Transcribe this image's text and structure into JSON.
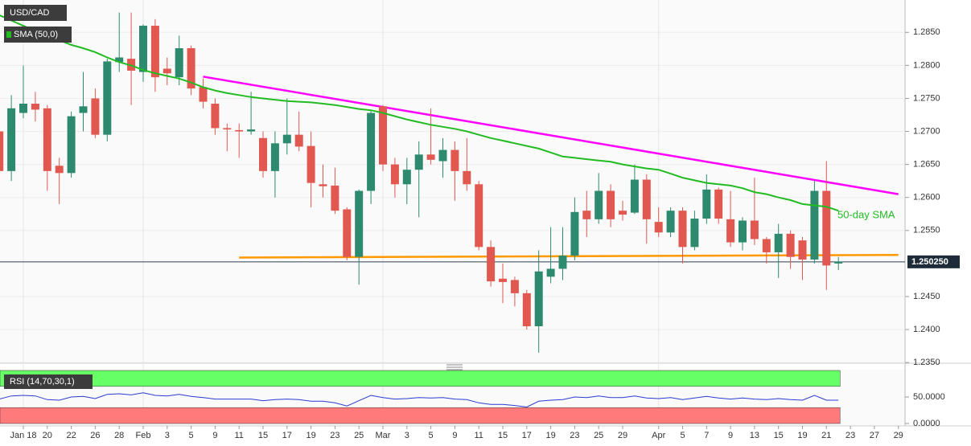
{
  "chart_data": [
    {
      "type": "candlestick",
      "title": "USD/CAD",
      "categories": [
        null,
        null,
        "Jan 18",
        null,
        "20",
        null,
        "22",
        null,
        "26",
        null,
        "28",
        null,
        "Feb",
        null,
        "3",
        null,
        "5",
        null,
        "9",
        null,
        "11",
        null,
        "15",
        null,
        "17",
        null,
        "19",
        null,
        "23",
        null,
        "25",
        null,
        "Mar",
        null,
        "3",
        null,
        "5",
        null,
        "9",
        null,
        "11",
        null,
        "15",
        null,
        "17",
        null,
        "19",
        null,
        "23",
        null,
        "25",
        null,
        "29",
        null,
        null,
        "Apr",
        null,
        "5",
        null,
        "7",
        null,
        "9",
        null,
        "13",
        null,
        "15",
        null,
        "19",
        null,
        "21",
        null,
        "23",
        null,
        "27",
        null,
        "29"
      ],
      "open": [
        1.27,
        1.264,
        1.2728,
        1.2742,
        1.2735,
        1.2648,
        1.2637,
        1.2728,
        1.275,
        1.2695,
        1.2805,
        1.281,
        1.279,
        1.286,
        1.2795,
        1.2782,
        1.2826,
        1.2767,
        1.2742,
        1.2705,
        1.2702,
        1.27,
        1.269,
        1.264,
        1.2682,
        1.2695,
        1.2678,
        1.262,
        1.2618,
        1.2582,
        1.251,
        1.261,
        1.2738,
        1.265,
        1.262,
        1.2642,
        1.2665,
        1.2655,
        1.2672,
        1.264,
        1.262,
        1.2525,
        1.2477,
        1.2475,
        1.2455,
        1.2405,
        1.248,
        1.2492,
        1.2512,
        1.258,
        1.2567,
        1.261,
        1.258,
        1.2577,
        1.2627,
        1.2563,
        1.2547,
        1.258,
        1.2525,
        1.2568,
        1.2612,
        1.2567,
        1.2532,
        1.2565,
        1.2537,
        1.2517,
        1.2545,
        1.2535,
        1.2506,
        1.261,
        1.25,
        null,
        null,
        null,
        null,
        null
      ],
      "high": [
        1.272,
        1.2755,
        1.28,
        1.276,
        1.274,
        1.266,
        1.273,
        1.279,
        1.2765,
        1.281,
        1.288,
        1.288,
        1.2862,
        1.287,
        1.2812,
        1.2845,
        1.283,
        1.278,
        1.275,
        1.2712,
        1.2712,
        1.276,
        1.27,
        1.27,
        1.275,
        1.273,
        1.27,
        1.265,
        1.2645,
        1.2585,
        1.2612,
        1.2732,
        1.274,
        1.266,
        1.266,
        1.2685,
        1.2735,
        1.269,
        1.2685,
        1.269,
        1.2625,
        1.2535,
        1.25,
        1.248,
        1.246,
        1.252,
        1.2555,
        1.2555,
        1.26,
        1.261,
        1.2637,
        1.262,
        1.2595,
        1.265,
        1.2635,
        1.2585,
        1.2585,
        1.2585,
        1.258,
        1.2635,
        1.2615,
        1.261,
        1.257,
        1.263,
        1.254,
        1.256,
        1.255,
        1.254,
        1.2625,
        1.2655,
        1.251,
        null,
        null,
        null,
        null,
        null
      ],
      "low": [
        1.263,
        1.2625,
        1.272,
        1.2715,
        1.261,
        1.259,
        1.263,
        1.27,
        1.269,
        1.2685,
        1.279,
        1.274,
        1.2775,
        1.276,
        1.277,
        1.277,
        1.2755,
        1.2735,
        1.2695,
        1.267,
        1.266,
        1.2695,
        1.263,
        1.26,
        1.2665,
        1.267,
        1.2585,
        1.26,
        1.2575,
        1.2505,
        1.2468,
        1.259,
        1.264,
        1.26,
        1.259,
        1.257,
        1.265,
        1.263,
        1.2595,
        1.261,
        1.252,
        1.2465,
        1.244,
        1.2435,
        1.24,
        1.2365,
        1.247,
        1.2475,
        1.2505,
        1.254,
        1.256,
        1.2555,
        1.2565,
        1.2575,
        1.253,
        1.254,
        1.254,
        1.25,
        1.252,
        1.256,
        1.256,
        1.2525,
        1.252,
        1.2528,
        1.25,
        1.2478,
        1.2492,
        1.2475,
        1.25,
        1.246,
        1.249,
        null,
        null,
        null,
        null,
        null
      ],
      "close": [
        1.264,
        1.2735,
        1.2742,
        1.2733,
        1.264,
        1.2637,
        1.2723,
        1.2738,
        1.2695,
        1.2806,
        1.2812,
        1.2792,
        1.286,
        1.2782,
        1.2788,
        1.2826,
        1.2765,
        1.2745,
        1.2705,
        1.2703,
        1.27,
        1.2703,
        1.264,
        1.2682,
        1.2695,
        1.2677,
        1.2622,
        1.2617,
        1.258,
        1.251,
        1.261,
        1.2728,
        1.265,
        1.262,
        1.2642,
        1.2665,
        1.2657,
        1.2672,
        1.264,
        1.262,
        1.2525,
        1.2473,
        1.2472,
        1.2455,
        1.2405,
        1.2488,
        1.2492,
        1.2512,
        1.2578,
        1.2567,
        1.261,
        1.2567,
        1.2574,
        1.2627,
        1.2567,
        1.2547,
        1.258,
        1.2525,
        1.2568,
        1.2612,
        1.2568,
        1.2532,
        1.2565,
        1.2537,
        1.2517,
        1.2545,
        1.251,
        1.2506,
        1.261,
        1.2497,
        1.2503,
        null,
        null,
        null,
        null,
        null
      ],
      "up_color": "#2d8a6e",
      "down_color": "#e0584f",
      "series": [
        {
          "name": "SMA (50,0)",
          "color": "#22bb22",
          "values": [
            1.2876,
            1.2868,
            1.286,
            1.2852,
            1.2845,
            1.2838,
            1.2831,
            1.2826,
            1.282,
            1.2812,
            1.2805,
            1.28,
            1.2793,
            1.2788,
            1.2784,
            1.278,
            1.2774,
            1.2767,
            1.2762,
            1.2758,
            1.2755,
            1.2752,
            1.275,
            1.2748,
            1.2746,
            1.2745,
            1.2744,
            1.2742,
            1.274,
            1.2737,
            1.2734,
            1.2732,
            1.2728,
            1.2723,
            1.2718,
            1.2714,
            1.271,
            1.2707,
            1.2704,
            1.27,
            1.2695,
            1.269,
            1.2686,
            1.2682,
            1.2678,
            1.2674,
            1.2668,
            1.2662,
            1.266,
            1.2658,
            1.2656,
            1.2654,
            1.265,
            1.2647,
            1.2644,
            1.2642,
            1.2636,
            1.263,
            1.2626,
            1.2622,
            1.262,
            1.2618,
            1.2614,
            1.2608,
            1.2605,
            1.26,
            1.2596,
            1.259,
            1.2588,
            1.2586,
            1.258,
            null,
            null,
            null,
            null,
            null
          ]
        }
      ],
      "annotation": "50-day SMA",
      "trendlines": [
        {
          "color": "#ff00ff",
          "x": [
            17,
            75
          ],
          "y": [
            1.2783,
            1.2605
          ]
        },
        {
          "color": "#ff9900",
          "x": [
            20,
            75
          ],
          "y": [
            1.2509,
            1.2513
          ]
        }
      ],
      "last_price": {
        "value": 1.25025,
        "label": "1.250250"
      },
      "ylim": [
        1.2349,
        1.2899
      ],
      "yticks": [
        {
          "value": 1.285,
          "label": "1.2850"
        },
        {
          "value": 1.28,
          "label": "1.2800"
        },
        {
          "value": 1.275,
          "label": "1.2750"
        },
        {
          "value": 1.27,
          "label": "1.2700"
        },
        {
          "value": 1.265,
          "label": "1.2650"
        },
        {
          "value": 1.26,
          "label": "1.2600"
        },
        {
          "value": 1.255,
          "label": "1.2550"
        },
        {
          "value": 1.245,
          "label": "1.2450"
        },
        {
          "value": 1.24,
          "label": "1.2400"
        },
        {
          "value": 1.235,
          "label": "1.2350"
        }
      ],
      "grid": true
    },
    {
      "type": "line",
      "title": "RSI (14,70,30,1)",
      "color": "#2b3bd0",
      "values": [
        46,
        52,
        53,
        52,
        45,
        44,
        50,
        51,
        47,
        55,
        56,
        54,
        58,
        53,
        52,
        55,
        51,
        49,
        46,
        46,
        46,
        46,
        43,
        45,
        46,
        45,
        42,
        42,
        39,
        33,
        43,
        53,
        49,
        46,
        47,
        49,
        48,
        49,
        46,
        45,
        39,
        36,
        36,
        34,
        31,
        42,
        44,
        45,
        50,
        49,
        52,
        49,
        49,
        52,
        48,
        47,
        49,
        45,
        48,
        51,
        48,
        46,
        48,
        46,
        45,
        47,
        45,
        44,
        53,
        44,
        44,
        null,
        null,
        null,
        null,
        null
      ],
      "zones": [
        {
          "from": 70,
          "to": 100,
          "color": "#66ff66"
        },
        {
          "from": 0,
          "to": 30,
          "color": "#ff7a7a"
        }
      ],
      "ylim": [
        0,
        100
      ],
      "yticks": [
        {
          "value": 50,
          "label": "50.0000"
        },
        {
          "value": 0,
          "label": "0.0000"
        }
      ]
    }
  ]
}
